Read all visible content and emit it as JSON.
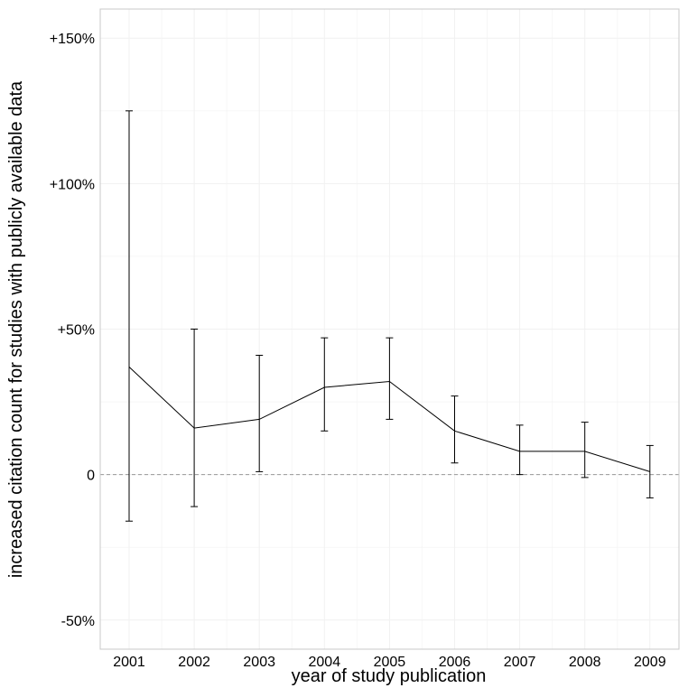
{
  "chart_data": {
    "type": "line",
    "title": "",
    "xlabel": "year of study publication",
    "ylabel": "increased citation count for studies with publicly available data",
    "x": [
      "2001",
      "2002",
      "2003",
      "2004",
      "2005",
      "2006",
      "2007",
      "2008",
      "2009"
    ],
    "series": [
      {
        "values": [
          37,
          16,
          19,
          30,
          32,
          15,
          8,
          8,
          1
        ],
        "lower": [
          -16,
          -11,
          1,
          15,
          19,
          4,
          0,
          -1,
          -8
        ],
        "upper": [
          125,
          50,
          41,
          47,
          47,
          27,
          17,
          18,
          10
        ]
      }
    ],
    "yticks": [
      {
        "value": -50,
        "label": "-50%"
      },
      {
        "value": 0,
        "label": "0"
      },
      {
        "value": 50,
        "label": "+50%"
      },
      {
        "value": 100,
        "label": "+100%"
      },
      {
        "value": 150,
        "label": "+150%"
      }
    ],
    "ylim": [
      -60,
      160
    ],
    "reference_line": 0,
    "grid": true,
    "colors": {
      "line": "#000000",
      "reference_line": "#999999",
      "grid": "#f1f1f1",
      "panel_border": "#c8c8c8"
    }
  }
}
